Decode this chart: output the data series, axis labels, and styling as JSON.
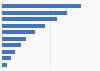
{
  "values": [
    1650,
    1350,
    1150,
    900,
    680,
    510,
    390,
    280,
    180,
    100
  ],
  "bar_color": "#4472c4",
  "background_color": "#f9f9f9",
  "grid_color": "#dddddd",
  "xlim": [
    0,
    2000
  ],
  "bar_height": 0.6,
  "n_bars": 10
}
